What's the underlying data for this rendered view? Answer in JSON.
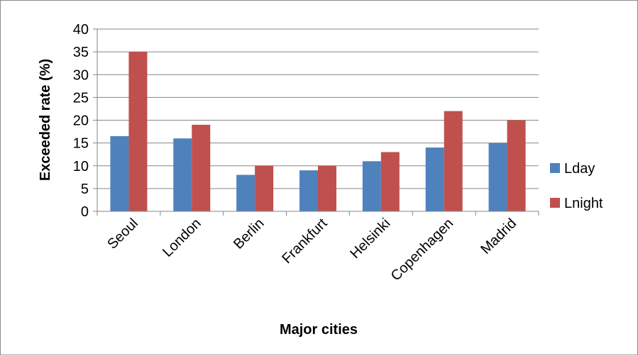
{
  "chart_data": {
    "type": "bar",
    "categories": [
      "Seoul",
      "London",
      "Berlin",
      "Frankfurt",
      "Helsinki",
      "Copenhagen",
      "Madrid"
    ],
    "series": [
      {
        "name": "Lday",
        "color": "#4f81bd",
        "values": [
          16.5,
          16,
          8,
          9,
          11,
          14,
          15
        ]
      },
      {
        "name": "Lnight",
        "color": "#c0504d",
        "values": [
          35,
          19,
          10,
          10,
          13,
          22,
          20
        ]
      }
    ],
    "title": "",
    "xlabel": "Major cities",
    "ylabel": "Exceeded rate (%)",
    "ylim": [
      0,
      40
    ],
    "yticks": [
      "0",
      "5",
      "10",
      "15",
      "20",
      "25",
      "30",
      "35",
      "40"
    ],
    "grid": true,
    "legend_position": "right"
  }
}
